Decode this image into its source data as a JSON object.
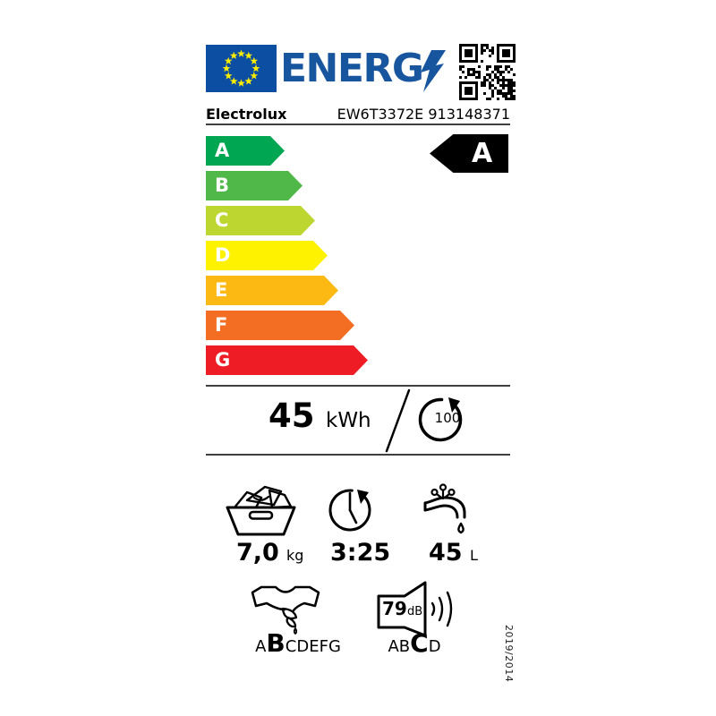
{
  "header": {
    "logo_text": "ENERG",
    "brand": "Electrolux",
    "model": "EW6T3372E 913148371"
  },
  "colors": {
    "flag_blue": "#0B4EA2",
    "logo_blue": "#17559E",
    "star_yellow": "#FFED00",
    "rating_arrow": "#000000"
  },
  "energy_scale": [
    {
      "label": "A",
      "color": "#00A651"
    },
    {
      "label": "B",
      "color": "#50B848"
    },
    {
      "label": "C",
      "color": "#BED630"
    },
    {
      "label": "D",
      "color": "#FFF200"
    },
    {
      "label": "E",
      "color": "#FDB913"
    },
    {
      "label": "F",
      "color": "#F36E22"
    },
    {
      "label": "G",
      "color": "#EE1C25"
    }
  ],
  "rating": {
    "class": "A"
  },
  "energy": {
    "value": "45",
    "unit": "kWh",
    "per_cycles": "100"
  },
  "capacity": {
    "value": "7,0",
    "unit": "kg"
  },
  "duration": {
    "value": "3:25"
  },
  "water": {
    "value": "45",
    "unit": "L"
  },
  "spin_class": {
    "scale": [
      "A",
      "B",
      "C",
      "D",
      "E",
      "F",
      "G"
    ],
    "active": "B"
  },
  "noise": {
    "db_value": "79",
    "db_unit": "dB",
    "scale": [
      "A",
      "B",
      "C",
      "D"
    ],
    "active": "C"
  },
  "regulation": "2019/2014"
}
